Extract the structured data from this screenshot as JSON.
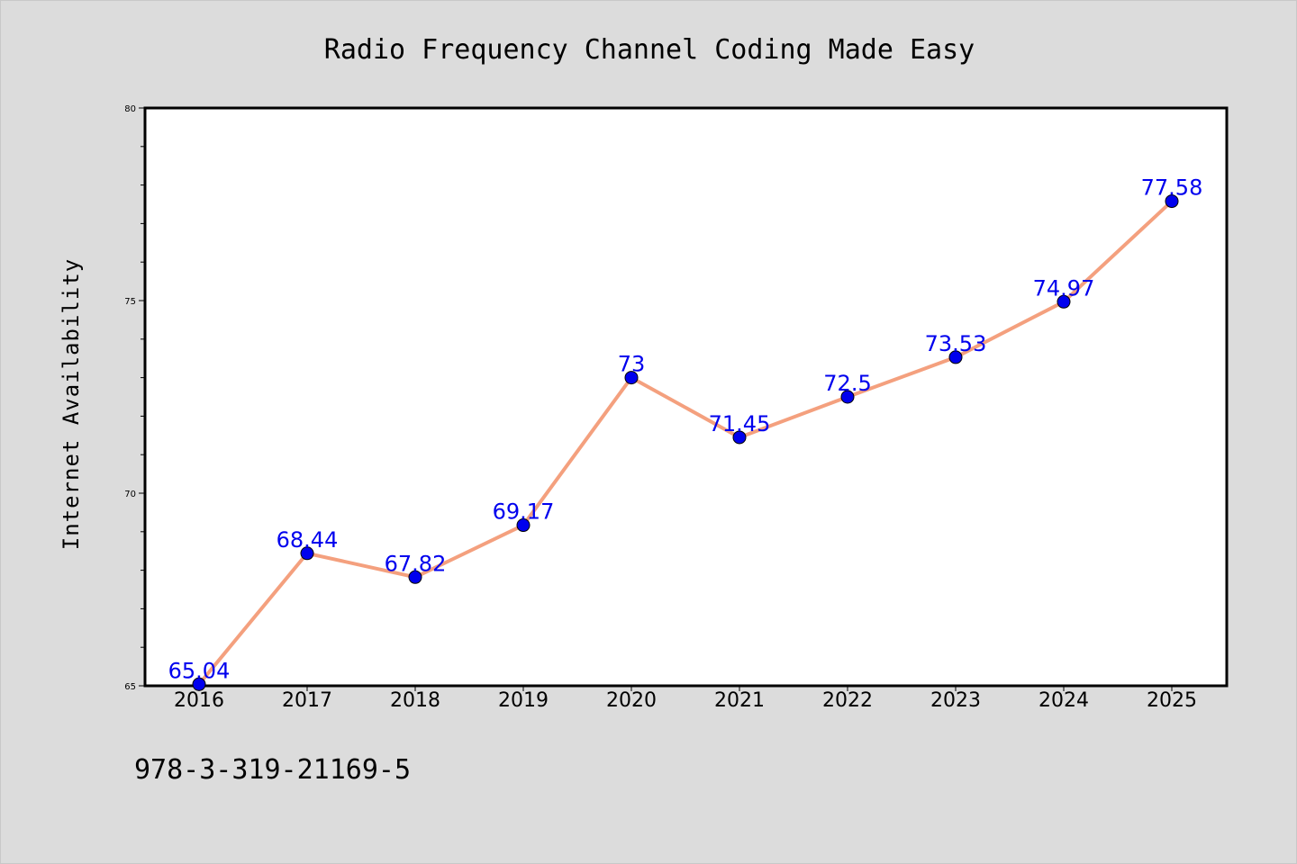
{
  "colors": {
    "background": "#dcdcdc",
    "plot_background": "#ffffff",
    "line": "#f4a07e",
    "marker": "#0000ee",
    "data_label": "#0000ee",
    "axis": "#000000"
  },
  "footer": {
    "isbn": "978-3-319-21169-5"
  },
  "chart_data": {
    "type": "line",
    "title": "Radio Frequency Channel Coding Made Easy",
    "xlabel": "",
    "ylabel": "Internet Availability",
    "categories": [
      "2016",
      "2017",
      "2018",
      "2019",
      "2020",
      "2021",
      "2022",
      "2023",
      "2024",
      "2025"
    ],
    "values": [
      65.04,
      68.44,
      67.82,
      69.17,
      73,
      71.45,
      72.5,
      73.53,
      74.97,
      77.58
    ],
    "value_labels": [
      "65.04",
      "68.44",
      "67.82",
      "69.17",
      "73",
      "71.45",
      "72.5",
      "73.53",
      "74.97",
      "77.58"
    ],
    "ylim": [
      65,
      80
    ],
    "yticks": [
      65,
      70,
      75,
      80
    ],
    "ytick_labels": [
      "65",
      "70",
      "75",
      "80"
    ],
    "grid": false,
    "legend": "none"
  }
}
